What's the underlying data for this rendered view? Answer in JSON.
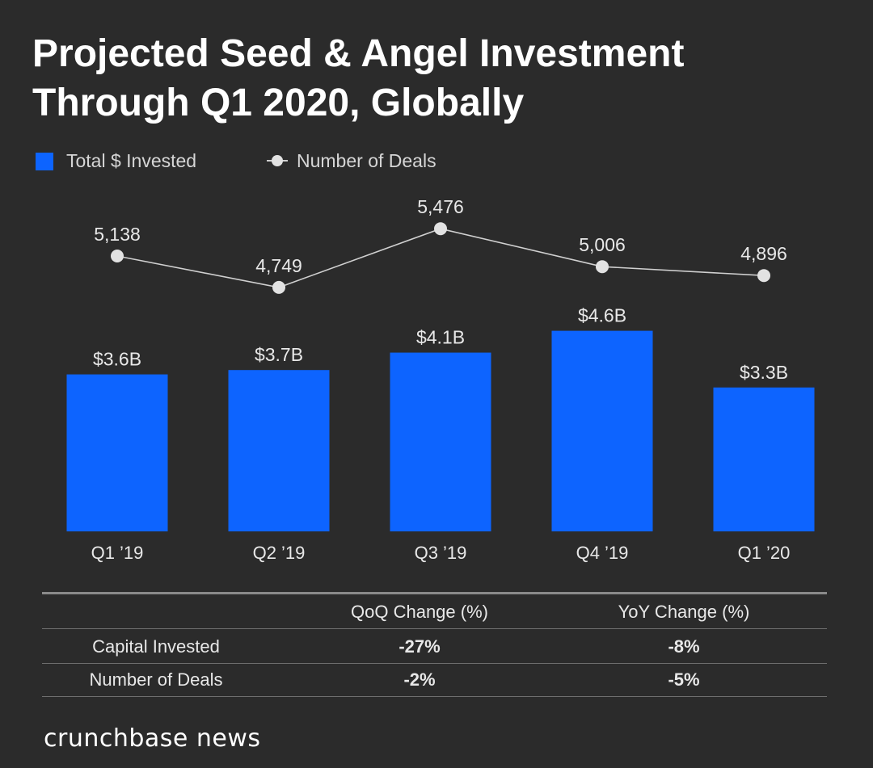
{
  "title_lines": [
    "Projected Seed & Angel Investment",
    "Through Q1 2020, Globally"
  ],
  "colors": {
    "background": "#2b2b2b",
    "bar": "#0d64ff",
    "line": "#d0d0d0",
    "dot": "#e2e2e2",
    "text": "#e8e8e8"
  },
  "chart_data": {
    "type": "bar",
    "categories": [
      "Q1 ’19",
      "Q2 ’19",
      "Q3 ’19",
      "Q4 ’19",
      "Q1 ’20"
    ],
    "series": [
      {
        "name": "Total $ Invested",
        "type": "bar",
        "values": [
          3.6,
          3.7,
          4.1,
          4.6,
          3.3
        ],
        "labels": [
          "$3.6B",
          "$3.7B",
          "$4.1B",
          "$4.6B",
          "$3.3B"
        ],
        "unit": "B USD"
      },
      {
        "name": "Number of Deals",
        "type": "line",
        "values": [
          5138,
          4749,
          5476,
          5006,
          4896
        ],
        "labels": [
          "5,138",
          "4,749",
          "5,476",
          "5,006",
          "4,896"
        ]
      }
    ],
    "legend": [
      "Total $ Invested",
      "Number of Deals"
    ],
    "legend_position": "top-left",
    "grid": false
  },
  "table": {
    "headers": [
      "",
      "QoQ Change (%)",
      "YoY Change (%)"
    ],
    "rows": [
      {
        "label": "Capital Invested",
        "qoq": "-27%",
        "yoy": "-8%"
      },
      {
        "label": "Number of Deals",
        "qoq": "-2%",
        "yoy": "-5%"
      }
    ]
  },
  "brand": "crunchbase news"
}
